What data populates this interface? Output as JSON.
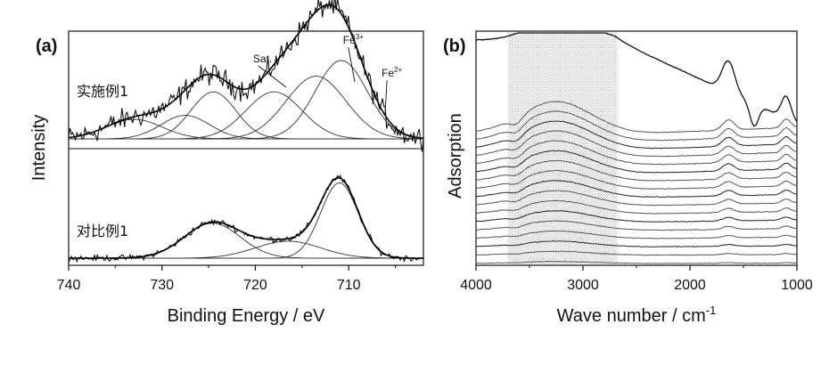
{
  "chart_data": [
    {
      "panel": "(a)",
      "type": "line",
      "xlabel": "Binding Energy / eV",
      "ylabel": "Intensity",
      "xlim": [
        740,
        702
      ],
      "x_reversed": true,
      "xticks": [
        740,
        730,
        720,
        710
      ],
      "xtick_labels": [
        "740",
        "730",
        "720",
        "710"
      ],
      "annotations": [
        {
          "text": "Sat.",
          "x": 717
        },
        {
          "text": "Fe",
          "sup": "3+",
          "x": 711
        },
        {
          "text": "Fe",
          "sup": "2+",
          "x": 708
        }
      ],
      "groups": [
        {
          "label": "实施例1",
          "baseline": 0,
          "series": [
            {
              "role": "fitted-peak",
              "center": 710.8,
              "width": 2.8,
              "height": 1.0
            },
            {
              "role": "fitted-peak",
              "center": 713.5,
              "width": 3.2,
              "height": 0.8
            },
            {
              "role": "fitted-peak",
              "center": 718.0,
              "width": 3.0,
              "height": 0.6
            },
            {
              "role": "fitted-peak",
              "center": 724.5,
              "width": 2.4,
              "height": 0.6
            },
            {
              "role": "fitted-peak",
              "center": 727.5,
              "width": 2.6,
              "height": 0.3
            },
            {
              "role": "fitted-peak",
              "center": 733.0,
              "width": 3.0,
              "height": 0.25
            }
          ]
        },
        {
          "label": "对比例1",
          "baseline": -1,
          "series": [
            {
              "role": "fitted-peak",
              "center": 711.0,
              "width": 2.0,
              "height": 1.55
            },
            {
              "role": "fitted-peak",
              "center": 716.5,
              "width": 3.5,
              "height": 0.35
            },
            {
              "role": "fitted-peak",
              "center": 724.6,
              "width": 3.0,
              "height": 0.72
            }
          ]
        }
      ]
    },
    {
      "panel": "(b)",
      "type": "line",
      "xlabel": "Wave number / cm",
      "xlabel_sup": "-1",
      "ylabel": "Adsorption",
      "xlim": [
        4000,
        1000
      ],
      "x_reversed": true,
      "xticks": [
        4000,
        3000,
        2000,
        1000
      ],
      "xtick_labels": [
        "4000",
        "3000",
        "2000",
        "1000"
      ],
      "highlight_region": [
        3700,
        2680
      ],
      "series_count": 18,
      "notes": "Stacked FTIR spectra; broad O-H band highlighted between ~3700 and ~2680 cm-1; sharp bands near 1640, 1400 and 1100 cm-1."
    }
  ]
}
